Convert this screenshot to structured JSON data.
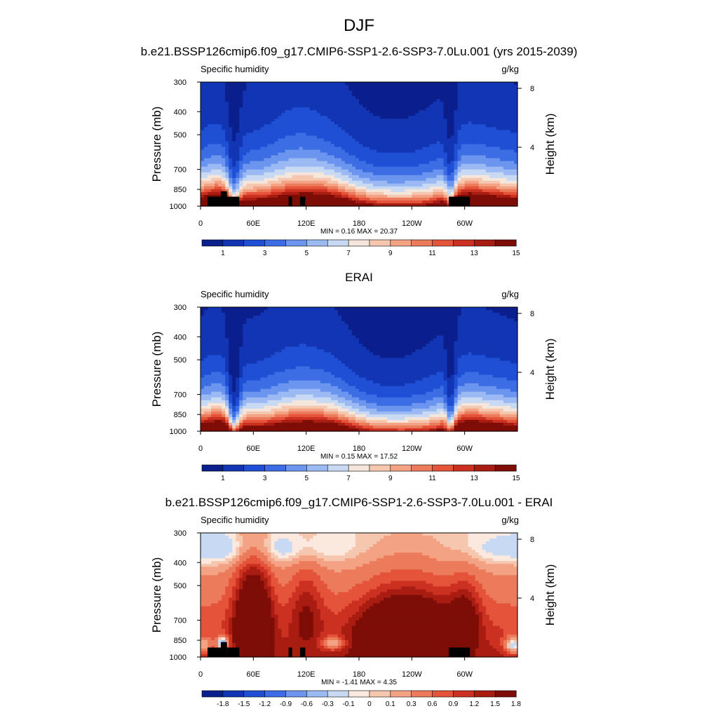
{
  "figure": {
    "title": "DJF"
  },
  "colors": {
    "abs_scale": [
      "#0a1e8c",
      "#1235b4",
      "#1f4fd4",
      "#3c6de4",
      "#6b95ee",
      "#9bb9f2",
      "#c8d9f4",
      "#f5e6dc",
      "#f6c7af",
      "#f3a284",
      "#ec7b5c",
      "#e4533a",
      "#cc3020",
      "#a81c12",
      "#7d0d06"
    ],
    "diff_scale": [
      "#0a1e8c",
      "#1235b4",
      "#1f4fd4",
      "#3c6de4",
      "#6b95ee",
      "#9bb9f2",
      "#c8d9f4",
      "#fbe9df",
      "#f6c7af",
      "#f3a284",
      "#ec7b5c",
      "#e4533a",
      "#cc3020",
      "#a81c12",
      "#7d0d06"
    ],
    "topography": "#000000"
  },
  "chart_data": [
    {
      "type": "heatmap",
      "title": "b.e21.BSSP126cmip6.f09_g17.CMIP6-SSP1-2.6-SSP3-7.0Lu.001 (yrs 2015-2039)",
      "left_string": "Specific humidity",
      "right_string": "g/kg",
      "ylabel": "Pressure (mb)",
      "ylabel_right": "Height (km)",
      "x_ticks": [
        "0",
        "60E",
        "120E",
        "180",
        "120W",
        "60W"
      ],
      "x_tick_values": [
        0,
        60,
        120,
        180,
        240,
        300
      ],
      "xlim": [
        0,
        360
      ],
      "y_ticks": [
        "300",
        "400",
        "500",
        "700",
        "850",
        "1000"
      ],
      "y_tick_values": [
        300,
        400,
        500,
        700,
        850,
        1000
      ],
      "ylim": [
        1000,
        300
      ],
      "y_scale": "log",
      "right_ticks": [
        "8",
        "4"
      ],
      "right_tick_values": [
        8,
        4
      ],
      "stats": "MIN =   0.16  MAX =  20.37",
      "min": 0.16,
      "max": 20.37,
      "field": "abs_model",
      "mask_topography": true,
      "colorbar_labels": [
        "1",
        "3",
        "5",
        "7",
        "9",
        "11",
        "13",
        "15"
      ],
      "colorbar_levels": [
        1,
        2,
        3,
        4,
        5,
        6,
        7,
        8,
        9,
        10,
        11,
        12,
        13,
        14,
        15
      ],
      "colorbar_label_every": 2
    },
    {
      "type": "heatmap",
      "title": "ERAI",
      "left_string": "Specific humidity",
      "right_string": "g/kg",
      "ylabel": "Pressure (mb)",
      "ylabel_right": "Height (km)",
      "x_ticks": [
        "0",
        "60E",
        "120E",
        "180",
        "120W",
        "60W"
      ],
      "x_tick_values": [
        0,
        60,
        120,
        180,
        240,
        300
      ],
      "xlim": [
        0,
        360
      ],
      "y_ticks": [
        "300",
        "400",
        "500",
        "700",
        "850",
        "1000"
      ],
      "y_tick_values": [
        300,
        400,
        500,
        700,
        850,
        1000
      ],
      "ylim": [
        1000,
        300
      ],
      "y_scale": "log",
      "right_ticks": [
        "8",
        "4"
      ],
      "right_tick_values": [
        8,
        4
      ],
      "stats": "MIN =   0.15  MAX =  17.52",
      "min": 0.15,
      "max": 17.52,
      "field": "abs_obs",
      "mask_topography": false,
      "colorbar_labels": [
        "1",
        "3",
        "5",
        "7",
        "9",
        "11",
        "13",
        "15"
      ],
      "colorbar_levels": [
        1,
        2,
        3,
        4,
        5,
        6,
        7,
        8,
        9,
        10,
        11,
        12,
        13,
        14,
        15
      ],
      "colorbar_label_every": 2
    },
    {
      "type": "heatmap",
      "title": "b.e21.BSSP126cmip6.f09_g17.CMIP6-SSP1-2.6-SSP3-7.0Lu.001 - ERAI",
      "left_string": "Specific humidity",
      "right_string": "g/kg",
      "ylabel": "Pressure (mb)",
      "ylabel_right": "Height (km)",
      "x_ticks": [
        "0",
        "60E",
        "120E",
        "180",
        "120W",
        "60W"
      ],
      "x_tick_values": [
        0,
        60,
        120,
        180,
        240,
        300
      ],
      "xlim": [
        0,
        360
      ],
      "y_ticks": [
        "300",
        "400",
        "500",
        "700",
        "850",
        "1000"
      ],
      "y_tick_values": [
        300,
        400,
        500,
        700,
        850,
        1000
      ],
      "ylim": [
        1000,
        300
      ],
      "y_scale": "log",
      "right_ticks": [
        "8",
        "4"
      ],
      "right_tick_values": [
        8,
        4
      ],
      "stats": "MIN =  -1.41  MAX =   4.35",
      "min": -1.41,
      "max": 4.35,
      "field": "diff",
      "mask_topography": true,
      "colorbar_labels": [
        "-1.8",
        "-1.5",
        "-1.2",
        "-0.9",
        "-0.6",
        "-0.3",
        "-0.1",
        "0",
        "0.1",
        "0.3",
        "0.6",
        "0.9",
        "1.2",
        "1.5",
        "1.8"
      ],
      "colorbar_levels": [
        -1.8,
        -1.5,
        -1.2,
        -0.9,
        -0.6,
        -0.3,
        -0.1,
        0,
        0.1,
        0.3,
        0.6,
        0.9,
        1.2,
        1.5,
        1.8
      ],
      "colorbar_label_every": 1
    }
  ]
}
